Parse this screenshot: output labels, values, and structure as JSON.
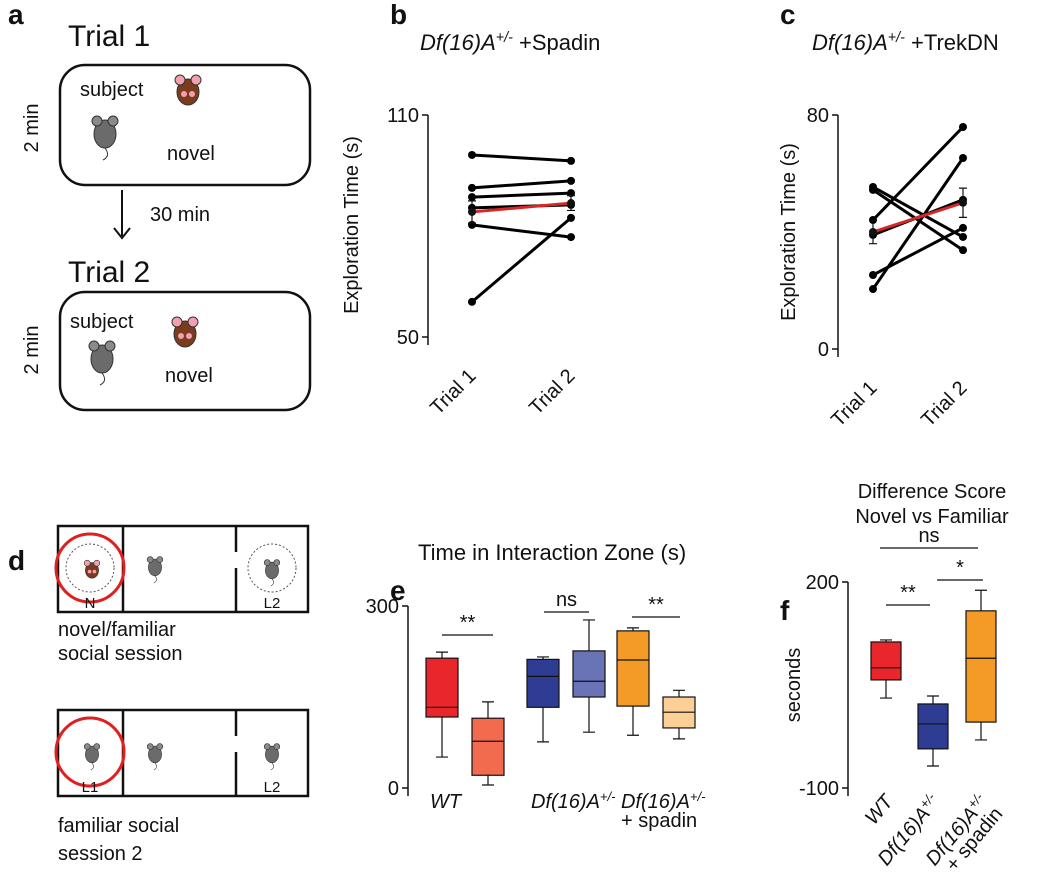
{
  "panel_labels": [
    "a",
    "b",
    "c",
    "d",
    "e",
    "f"
  ],
  "diagram_a": {
    "trials": [
      {
        "title": "Trial 1",
        "subject": "subject",
        "novel": "novel",
        "duration": "2 min"
      },
      {
        "title": "Trial 2",
        "subject": "subject",
        "novel": "novel",
        "duration": "2 min"
      }
    ],
    "interval": "30 min"
  },
  "diagram_d": {
    "sessions": [
      {
        "zones": [
          "N",
          "L2"
        ],
        "caption": [
          "novel/familiar",
          "social session"
        ]
      },
      {
        "zones": [
          "L1",
          "L2"
        ],
        "caption": [
          "familiar social",
          "session 2"
        ]
      }
    ]
  },
  "chart_data": [
    {
      "type": "line",
      "title": [
        "Df(16)A",
        "+/-",
        " +Spadin"
      ],
      "y_label": "Exploration Time (s)",
      "categories": [
        "Trial 1",
        "Trial 2"
      ],
      "ylim": [
        50,
        110
      ],
      "yticks": [
        50,
        110
      ],
      "series": [
        {
          "color": "#000000",
          "values": [
            99.2,
            97.6
          ]
        },
        {
          "color": "#000000",
          "values": [
            90.3,
            92.2
          ]
        },
        {
          "color": "#000000",
          "values": [
            87.8,
            88.9
          ]
        },
        {
          "color": "#000000",
          "values": [
            84.9,
            85.7
          ]
        },
        {
          "color": "#000000",
          "values": [
            80.3,
            77.0
          ]
        },
        {
          "color": "#000000",
          "values": [
            59.5,
            82.2
          ]
        },
        {
          "color": "#d62728",
          "values": [
            83.8,
            86.2
          ],
          "errors": [
            3,
            2
          ]
        }
      ]
    },
    {
      "type": "line",
      "title": [
        "Df(16)A",
        "+/-",
        "  +TrekDN"
      ],
      "y_label": "Exploration Time (s)",
      "categories": [
        "Trial 1",
        "Trial 2"
      ],
      "ylim": [
        0,
        80
      ],
      "yticks": [
        0,
        80
      ],
      "series": [
        {
          "color": "#000000",
          "values": [
            54.4,
            33.8
          ]
        },
        {
          "color": "#000000",
          "values": [
            55.4,
            38.3
          ]
        },
        {
          "color": "#000000",
          "values": [
            44.1,
            75.9
          ]
        },
        {
          "color": "#000000",
          "values": [
            39.0,
            51.0
          ]
        },
        {
          "color": "#000000",
          "values": [
            25.3,
            41.4
          ]
        },
        {
          "color": "#000000",
          "values": [
            20.5,
            65.3
          ]
        },
        {
          "color": "#d62728",
          "values": [
            40.0,
            50.0
          ],
          "errors": [
            4,
            5
          ]
        }
      ]
    },
    {
      "type": "box",
      "title": "Time in Interaction Zone (s)",
      "ylim": [
        0,
        300
      ],
      "yticks": [
        0,
        300
      ],
      "significance": [
        "**",
        "ns",
        "**"
      ],
      "groups": [
        {
          "label": [
            "WT"
          ],
          "boxes": [
            {
              "color": "#e8262b",
              "whisker_low": 51,
              "q1": 117,
              "median": 133,
              "q3": 214,
              "whisker_high": 224
            },
            {
              "color": "#f26b4f",
              "whisker_low": 5,
              "q1": 21,
              "median": 77,
              "q3": 115,
              "whisker_high": 142
            }
          ]
        },
        {
          "label": [
            "Df(16)A",
            "+/-"
          ],
          "boxes": [
            {
              "color": "#2e3d93",
              "whisker_low": 76,
              "q1": 133,
              "median": 184,
              "q3": 212,
              "whisker_high": 216
            },
            {
              "color": "#6874b5",
              "whisker_low": 92,
              "q1": 150,
              "median": 176,
              "q3": 226,
              "whisker_high": 277
            }
          ]
        },
        {
          "label": [
            "Df(16)A",
            "+/-",
            "+ spadin"
          ],
          "boxes": [
            {
              "color": "#f39a27",
              "whisker_low": 87,
              "q1": 135,
              "median": 211,
              "q3": 259,
              "whisker_high": 264
            },
            {
              "color": "#fbcf95",
              "whisker_low": 81,
              "q1": 99,
              "median": 125,
              "q3": 150,
              "whisker_high": 161
            }
          ]
        }
      ]
    },
    {
      "type": "box",
      "title": [
        "Difference Score",
        "Novel vs Familiar"
      ],
      "y_label": "seconds",
      "ylim": [
        -100,
        200
      ],
      "yticks": [
        -100,
        200
      ],
      "significance": [
        "ns",
        "**",
        "*"
      ],
      "groups": [
        {
          "label": [
            "WT"
          ],
          "boxes": [
            {
              "color": "#e8262b",
              "whisker_low": 31,
              "q1": 57.4,
              "median": 75,
              "q3": 112.7,
              "whisker_high": 115.6
            }
          ]
        },
        {
          "label": [
            "Df(16)A",
            "+/-"
          ],
          "boxes": [
            {
              "color": "#2e3d93",
              "whisker_low": -68,
              "q1": -43,
              "median": -6.7,
              "q3": 22.4,
              "whisker_high": 34
            }
          ]
        },
        {
          "label": [
            "Df(16)A",
            "+/-",
            "+ spadin"
          ],
          "boxes": [
            {
              "color": "#f39a27",
              "whisker_low": -30,
              "q1": -4,
              "median": 89,
              "q3": 158,
              "whisker_high": 188
            }
          ]
        }
      ]
    }
  ]
}
